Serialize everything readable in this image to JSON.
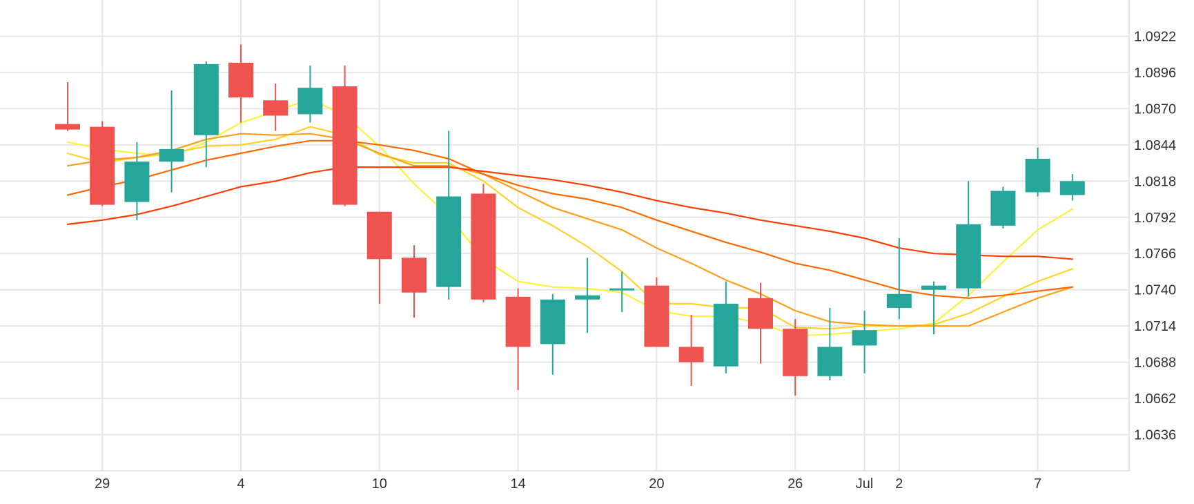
{
  "chart_data": {
    "type": "candlestick",
    "ylim": [
      1.061,
      1.0948
    ],
    "yticks": [
      "1.0922",
      "1.0896",
      "1.0870",
      "1.0844",
      "1.0818",
      "1.0792",
      "1.0766",
      "1.0740",
      "1.0714",
      "1.0688",
      "1.0662",
      "1.0636"
    ],
    "xticks": [
      {
        "label": "29",
        "index": 1
      },
      {
        "label": "4",
        "index": 5
      },
      {
        "label": "10",
        "index": 9
      },
      {
        "label": "14",
        "index": 13
      },
      {
        "label": "20",
        "index": 17
      },
      {
        "label": "26",
        "index": 21
      },
      {
        "label": "Jul",
        "index": 23
      },
      {
        "label": "2",
        "index": 24
      },
      {
        "label": "7",
        "index": 28
      }
    ],
    "grid": true,
    "candles": [
      {
        "o": 1.0859,
        "h": 1.0889,
        "l": 1.0854,
        "c": 1.0855
      },
      {
        "o": 1.0857,
        "h": 1.0861,
        "l": 1.08,
        "c": 1.0801
      },
      {
        "o": 1.0803,
        "h": 1.0846,
        "l": 1.079,
        "c": 1.0832
      },
      {
        "o": 1.0832,
        "h": 1.0883,
        "l": 1.081,
        "c": 1.0841
      },
      {
        "o": 1.0851,
        "h": 1.0904,
        "l": 1.0828,
        "c": 1.0902
      },
      {
        "o": 1.0903,
        "h": 1.0916,
        "l": 1.086,
        "c": 1.0878
      },
      {
        "o": 1.0876,
        "h": 1.0888,
        "l": 1.0854,
        "c": 1.0865
      },
      {
        "o": 1.0866,
        "h": 1.0901,
        "l": 1.086,
        "c": 1.0885
      },
      {
        "o": 1.0886,
        "h": 1.0901,
        "l": 1.08,
        "c": 1.0801
      },
      {
        "o": 1.0796,
        "h": 1.0796,
        "l": 1.073,
        "c": 1.0762
      },
      {
        "o": 1.0763,
        "h": 1.0772,
        "l": 1.072,
        "c": 1.0738
      },
      {
        "o": 1.0742,
        "h": 1.0854,
        "l": 1.0733,
        "c": 1.0807
      },
      {
        "o": 1.0809,
        "h": 1.0816,
        "l": 1.0731,
        "c": 1.0733
      },
      {
        "o": 1.0735,
        "h": 1.0741,
        "l": 1.0668,
        "c": 1.0699
      },
      {
        "o": 1.0701,
        "h": 1.0737,
        "l": 1.0679,
        "c": 1.0733
      },
      {
        "o": 1.0733,
        "h": 1.0763,
        "l": 1.0709,
        "c": 1.0736
      },
      {
        "o": 1.074,
        "h": 1.0753,
        "l": 1.0724,
        "c": 1.0741
      },
      {
        "o": 1.0743,
        "h": 1.0749,
        "l": 1.0699,
        "c": 1.0699
      },
      {
        "o": 1.0699,
        "h": 1.0722,
        "l": 1.0671,
        "c": 1.0688
      },
      {
        "o": 1.0685,
        "h": 1.0746,
        "l": 1.068,
        "c": 1.073
      },
      {
        "o": 1.0734,
        "h": 1.0745,
        "l": 1.0687,
        "c": 1.0712
      },
      {
        "o": 1.0712,
        "h": 1.0719,
        "l": 1.0664,
        "c": 1.0678
      },
      {
        "o": 1.0678,
        "h": 1.0727,
        "l": 1.0675,
        "c": 1.0699
      },
      {
        "o": 1.07,
        "h": 1.0725,
        "l": 1.068,
        "c": 1.0711
      },
      {
        "o": 1.0727,
        "h": 1.0777,
        "l": 1.0719,
        "c": 1.0737
      },
      {
        "o": 1.074,
        "h": 1.0746,
        "l": 1.0708,
        "c": 1.0743
      },
      {
        "o": 1.0741,
        "h": 1.0818,
        "l": 1.0735,
        "c": 1.0787
      },
      {
        "o": 1.0786,
        "h": 1.0814,
        "l": 1.0784,
        "c": 1.0811
      },
      {
        "o": 1.081,
        "h": 1.0842,
        "l": 1.0807,
        "c": 1.0834
      },
      {
        "o": 1.0808,
        "h": 1.0823,
        "l": 1.0804,
        "c": 1.0818
      }
    ],
    "moving_averages": [
      {
        "color": "#fff23a",
        "values": [
          1.0846,
          1.0841,
          1.0838,
          1.0836,
          1.0846,
          1.086,
          1.0868,
          1.0877,
          1.0865,
          1.0843,
          1.0816,
          1.0793,
          1.0762,
          1.0746,
          1.0742,
          1.0741,
          1.0738,
          1.0725,
          1.0721,
          1.0721,
          1.0716,
          1.0707,
          1.0708,
          1.071,
          1.0712,
          1.0716,
          1.0736,
          1.076,
          1.0783,
          1.0798
        ]
      },
      {
        "color": "#ffd32a",
        "values": [
          1.0838,
          1.0831,
          1.0835,
          1.0838,
          1.0843,
          1.0844,
          1.0848,
          1.0857,
          1.0851,
          1.0837,
          1.0831,
          1.0831,
          1.0818,
          1.0799,
          1.0786,
          1.0771,
          1.0753,
          1.073,
          1.073,
          1.0727,
          1.0727,
          1.0713,
          1.0712,
          1.0714,
          1.0714,
          1.0715,
          1.0723,
          1.0735,
          1.0746,
          1.0755
        ]
      },
      {
        "color": "#ff9f1a",
        "values": [
          1.0829,
          1.0833,
          1.0835,
          1.084,
          1.0848,
          1.0852,
          1.0851,
          1.0852,
          1.0848,
          1.0838,
          1.0829,
          1.0829,
          1.0823,
          1.0811,
          1.0799,
          1.0791,
          1.0783,
          1.077,
          1.0759,
          1.0747,
          1.0737,
          1.0725,
          1.0717,
          1.0715,
          1.0714,
          1.0714,
          1.0714,
          1.0724,
          1.0734,
          1.0742
        ]
      },
      {
        "color": "#ff6a00",
        "values": [
          1.0808,
          1.0814,
          1.0819,
          1.0826,
          1.0833,
          1.0838,
          1.0843,
          1.0847,
          1.0847,
          1.0844,
          1.084,
          1.0834,
          1.0823,
          1.0815,
          1.0809,
          1.0805,
          1.0799,
          1.079,
          1.0782,
          1.0774,
          1.0767,
          1.0759,
          1.0754,
          1.0747,
          1.074,
          1.0736,
          1.0734,
          1.0736,
          1.0739,
          1.0742
        ]
      },
      {
        "color": "#ff3d00",
        "values": [
          1.0787,
          1.079,
          1.0794,
          1.08,
          1.0807,
          1.0814,
          1.0818,
          1.0824,
          1.0828,
          1.0828,
          1.0828,
          1.0828,
          1.0825,
          1.0822,
          1.0819,
          1.0815,
          1.081,
          1.0804,
          1.0799,
          1.0795,
          1.079,
          1.0786,
          1.0782,
          1.0777,
          1.077,
          1.0766,
          1.0765,
          1.0764,
          1.0764,
          1.0762
        ]
      }
    ],
    "colors": {
      "up": "#26a69a",
      "down": "#ef5350",
      "grid": "#e6e6e6",
      "text": "#333333"
    }
  }
}
